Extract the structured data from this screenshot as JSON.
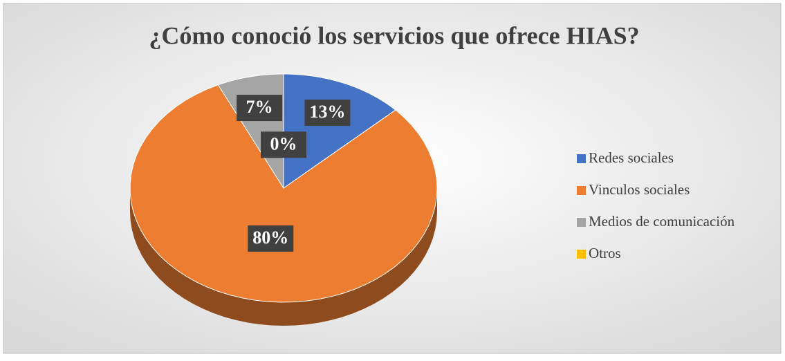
{
  "chart_data": {
    "type": "pie",
    "title": "¿Cómo conoció los servicios que ofrece HIAS?",
    "categories": [
      "Redes sociales",
      "Vinculos sociales",
      "Medios de comunicación",
      "Otros"
    ],
    "values": [
      13,
      80,
      7,
      0
    ],
    "value_labels": [
      "13%",
      "80%",
      "7%",
      "0%"
    ],
    "colors": [
      "#4472c4",
      "#ed7d31",
      "#a5a5a5",
      "#ffc000"
    ],
    "legend": "right"
  }
}
